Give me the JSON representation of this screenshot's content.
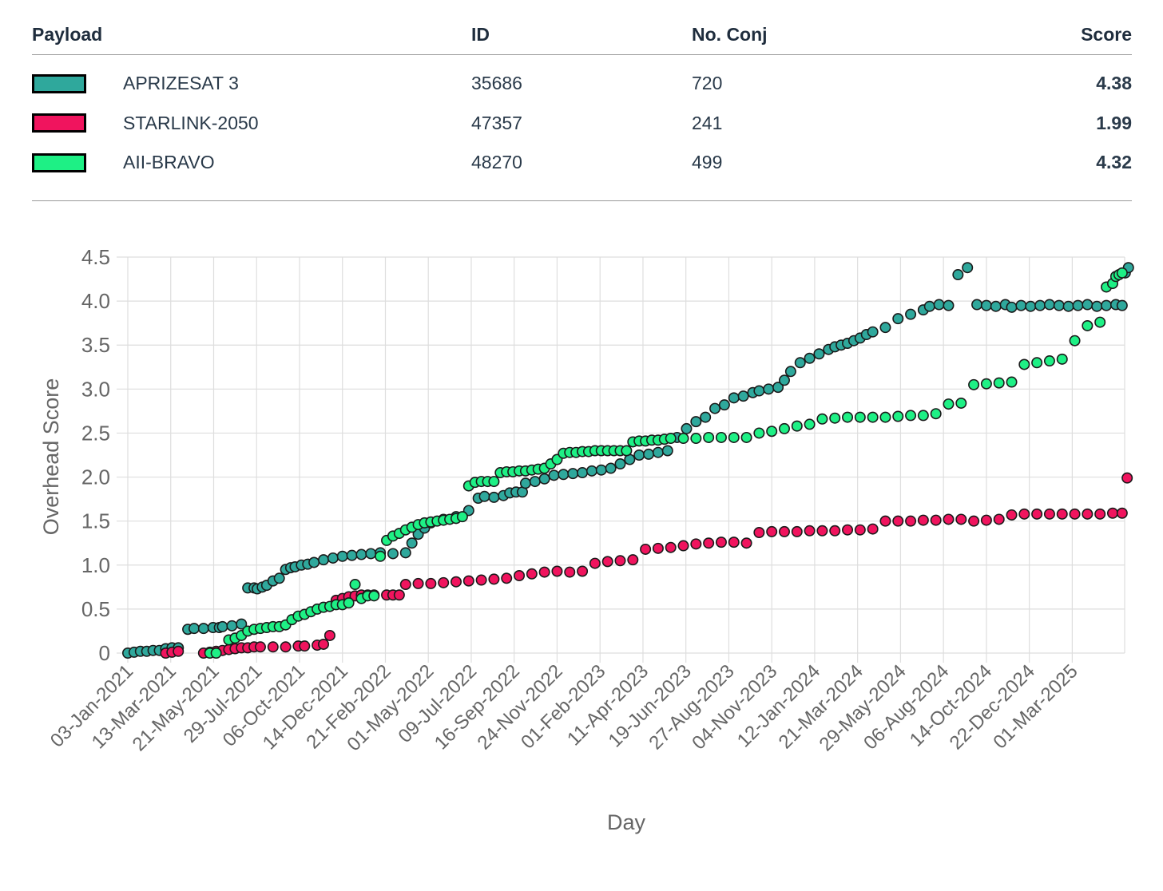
{
  "table": {
    "headers": {
      "payload": "Payload",
      "id": "ID",
      "conj": "No. Conj",
      "score": "Score"
    },
    "rows": [
      {
        "name": "APRIZESAT 3",
        "id": "35686",
        "conj": "720",
        "score": "4.38",
        "color": "#2fa89c"
      },
      {
        "name": "STARLINK-2050",
        "id": "47357",
        "conj": "241",
        "score": "1.99",
        "color": "#f0145e"
      },
      {
        "name": "AII-BRAVO",
        "id": "48270",
        "conj": "499",
        "score": "4.32",
        "color": "#1ef085"
      }
    ]
  },
  "chart_data": {
    "type": "scatter",
    "xlabel": "Day",
    "ylabel": "Overhead Score",
    "ylim": [
      0,
      4.5
    ],
    "yticks": [
      "0",
      "0.5",
      "1.0",
      "1.5",
      "2.0",
      "2.5",
      "3.0",
      "3.5",
      "4.0",
      "4.5"
    ],
    "x_start": "2021-01-03",
    "x_end": "2025-04-28",
    "x_tick_labels": [
      "03-Jan-2021",
      "13-Mar-2021",
      "21-May-2021",
      "29-Jul-2021",
      "06-Oct-2021",
      "14-Dec-2021",
      "21-Feb-2022",
      "01-May-2022",
      "09-Jul-2022",
      "16-Sep-2022",
      "24-Nov-2022",
      "01-Feb-2023",
      "11-Apr-2023",
      "19-Jun-2023",
      "27-Aug-2023",
      "04-Nov-2023",
      "12-Jan-2024",
      "21-Mar-2024",
      "29-May-2024",
      "06-Aug-2024",
      "14-Oct-2024",
      "22-Dec-2024",
      "01-Mar-2025"
    ],
    "series": [
      {
        "name": "APRIZESAT 3",
        "color": "#2fa89c",
        "day_offsets": [
          0,
          10,
          20,
          30,
          40,
          50,
          60,
          70,
          80,
          95,
          105,
          120,
          135,
          145,
          150,
          165,
          180,
          190,
          200,
          205,
          213,
          220,
          230,
          240,
          250,
          258,
          265,
          275,
          285,
          295,
          310,
          325,
          340,
          355,
          370,
          385,
          400,
          420,
          440,
          450,
          460,
          470,
          480,
          500,
          520,
          540,
          555,
          565,
          580,
          595,
          605,
          615,
          625,
          630,
          645,
          660,
          675,
          690,
          705,
          720,
          735,
          750,
          765,
          780,
          795,
          810,
          825,
          840,
          855,
          870,
          885,
          900,
          915,
          930,
          945,
          960,
          975,
          990,
          1000,
          1015,
          1030,
          1040,
          1050,
          1065,
          1080,
          1095,
          1110,
          1120,
          1130,
          1140,
          1150,
          1160,
          1170,
          1180,
          1200,
          1220,
          1240,
          1260,
          1270,
          1285,
          1300,
          1315,
          1330,
          1345,
          1360,
          1375,
          1390,
          1400,
          1415,
          1430,
          1445,
          1460,
          1475,
          1490,
          1505,
          1520,
          1535,
          1550,
          1565,
          1575,
          1580,
          1585
        ],
        "values": [
          0.0,
          0.01,
          0.02,
          0.02,
          0.03,
          0.03,
          0.05,
          0.06,
          0.06,
          0.27,
          0.28,
          0.28,
          0.29,
          0.29,
          0.3,
          0.31,
          0.33,
          0.74,
          0.74,
          0.73,
          0.75,
          0.77,
          0.82,
          0.85,
          0.95,
          0.97,
          0.98,
          1.0,
          1.01,
          1.03,
          1.06,
          1.08,
          1.1,
          1.11,
          1.12,
          1.13,
          1.14,
          1.13,
          1.14,
          1.25,
          1.35,
          1.42,
          1.48,
          1.52,
          1.55,
          1.62,
          1.76,
          1.78,
          1.77,
          1.79,
          1.82,
          1.83,
          1.83,
          1.93,
          1.95,
          1.98,
          2.02,
          2.03,
          2.04,
          2.05,
          2.07,
          2.08,
          2.1,
          2.15,
          2.2,
          2.25,
          2.26,
          2.28,
          2.3,
          2.45,
          2.55,
          2.63,
          2.68,
          2.78,
          2.82,
          2.9,
          2.92,
          2.96,
          2.98,
          3.0,
          3.02,
          3.1,
          3.2,
          3.3,
          3.35,
          3.4,
          3.45,
          3.48,
          3.5,
          3.52,
          3.55,
          3.58,
          3.62,
          3.65,
          3.7,
          3.8,
          3.85,
          3.9,
          3.94,
          3.96,
          3.95,
          4.3,
          4.38,
          3.96,
          3.95,
          3.94,
          3.96,
          3.93,
          3.95,
          3.94,
          3.95,
          3.96,
          3.95,
          3.94,
          3.95,
          3.96,
          3.94,
          3.95,
          3.96,
          3.95,
          4.32,
          4.38
        ],
        "_note": ""
      },
      {
        "name": "STARLINK-2050",
        "color": "#f0145e",
        "day_offsets": [
          60,
          70,
          80,
          120,
          130,
          140,
          150,
          160,
          170,
          180,
          190,
          200,
          210,
          230,
          250,
          270,
          280,
          300,
          310,
          320,
          330,
          340,
          350,
          360,
          370,
          380,
          390,
          410,
          420,
          430,
          440,
          460,
          480,
          500,
          520,
          540,
          560,
          580,
          600,
          620,
          640,
          660,
          680,
          700,
          720,
          740,
          760,
          780,
          800,
          820,
          840,
          860,
          880,
          900,
          920,
          940,
          960,
          980,
          1000,
          1020,
          1040,
          1060,
          1080,
          1100,
          1120,
          1140,
          1160,
          1180,
          1200,
          1220,
          1240,
          1260,
          1280,
          1300,
          1320,
          1340,
          1360,
          1380,
          1400,
          1420,
          1440,
          1460,
          1480,
          1500,
          1520,
          1540,
          1560,
          1575,
          1583
        ],
        "values": [
          0.0,
          0.01,
          0.02,
          0.0,
          0.01,
          0.02,
          0.03,
          0.04,
          0.05,
          0.06,
          0.06,
          0.07,
          0.07,
          0.07,
          0.07,
          0.08,
          0.08,
          0.09,
          0.1,
          0.2,
          0.6,
          0.62,
          0.64,
          0.65,
          0.66,
          0.66,
          0.66,
          0.66,
          0.66,
          0.66,
          0.78,
          0.79,
          0.79,
          0.8,
          0.81,
          0.82,
          0.83,
          0.84,
          0.85,
          0.88,
          0.9,
          0.92,
          0.93,
          0.92,
          0.93,
          1.02,
          1.04,
          1.05,
          1.06,
          1.18,
          1.19,
          1.2,
          1.22,
          1.24,
          1.25,
          1.26,
          1.26,
          1.25,
          1.37,
          1.38,
          1.38,
          1.38,
          1.39,
          1.39,
          1.39,
          1.4,
          1.4,
          1.41,
          1.5,
          1.5,
          1.5,
          1.51,
          1.51,
          1.52,
          1.52,
          1.5,
          1.51,
          1.52,
          1.57,
          1.58,
          1.58,
          1.58,
          1.58,
          1.58,
          1.58,
          1.58,
          1.59,
          1.59,
          1.99
        ]
      },
      {
        "name": "AII-BRAVO",
        "color": "#1ef085",
        "day_offsets": [
          130,
          140,
          160,
          170,
          180,
          190,
          200,
          210,
          220,
          230,
          240,
          250,
          260,
          270,
          280,
          290,
          300,
          310,
          320,
          330,
          340,
          350,
          360,
          370,
          380,
          390,
          400,
          410,
          420,
          430,
          440,
          450,
          460,
          470,
          480,
          490,
          500,
          510,
          520,
          530,
          540,
          550,
          560,
          570,
          580,
          590,
          600,
          610,
          620,
          630,
          640,
          650,
          660,
          670,
          680,
          690,
          700,
          710,
          720,
          730,
          740,
          750,
          760,
          770,
          780,
          790,
          800,
          810,
          820,
          830,
          840,
          850,
          860,
          880,
          900,
          920,
          940,
          960,
          980,
          1000,
          1020,
          1040,
          1060,
          1080,
          1100,
          1120,
          1140,
          1160,
          1180,
          1200,
          1220,
          1240,
          1260,
          1280,
          1300,
          1320,
          1340,
          1360,
          1380,
          1400,
          1420,
          1440,
          1460,
          1480,
          1500,
          1520,
          1540,
          1550,
          1560,
          1565,
          1570,
          1575
        ],
        "values": [
          0.0,
          0.0,
          0.15,
          0.17,
          0.2,
          0.25,
          0.27,
          0.28,
          0.29,
          0.3,
          0.3,
          0.32,
          0.38,
          0.42,
          0.44,
          0.47,
          0.5,
          0.52,
          0.53,
          0.55,
          0.55,
          0.57,
          0.78,
          0.62,
          0.65,
          0.65,
          1.1,
          1.28,
          1.33,
          1.36,
          1.4,
          1.43,
          1.46,
          1.48,
          1.49,
          1.5,
          1.51,
          1.52,
          1.53,
          1.55,
          1.9,
          1.94,
          1.95,
          1.95,
          1.95,
          2.05,
          2.06,
          2.06,
          2.07,
          2.07,
          2.08,
          2.09,
          2.1,
          2.15,
          2.2,
          2.27,
          2.28,
          2.28,
          2.29,
          2.29,
          2.3,
          2.3,
          2.3,
          2.3,
          2.3,
          2.3,
          2.4,
          2.41,
          2.41,
          2.42,
          2.42,
          2.43,
          2.44,
          2.44,
          2.44,
          2.45,
          2.45,
          2.45,
          2.45,
          2.5,
          2.52,
          2.55,
          2.58,
          2.6,
          2.66,
          2.67,
          2.68,
          2.68,
          2.68,
          2.68,
          2.69,
          2.7,
          2.7,
          2.72,
          2.83,
          2.84,
          3.05,
          3.06,
          3.07,
          3.08,
          3.28,
          3.3,
          3.32,
          3.34,
          3.55,
          3.72,
          3.76,
          4.16,
          4.2,
          4.28,
          4.3,
          4.32
        ]
      }
    ]
  }
}
